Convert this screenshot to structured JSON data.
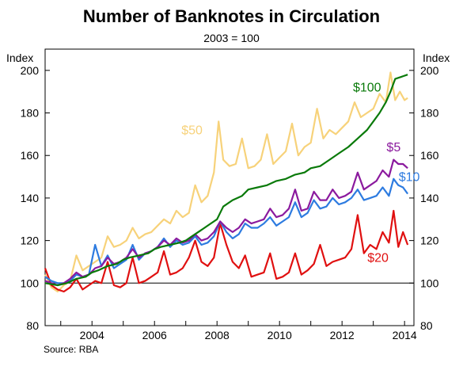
{
  "title": "Number of Banknotes in Circulation",
  "subtitle": "2003 = 100",
  "source": "Source: RBA",
  "chart_data": {
    "type": "line",
    "title": "Number of Banknotes in Circulation",
    "subtitle": "2003 = 100",
    "ylabel_left": "Index",
    "ylabel_right": "Index",
    "ylim": [
      80,
      210
    ],
    "yticks": [
      80,
      100,
      120,
      140,
      160,
      180,
      200
    ],
    "xlim": [
      2002.5,
      2014.3
    ],
    "xticks": [
      2004,
      2006,
      2008,
      2010,
      2012,
      2014
    ],
    "grid": false,
    "reference_line": 100,
    "legend": "inline labels",
    "series": [
      {
        "name": "$100",
        "color": "#0a7a0a",
        "x": [
          2002.5,
          2002.9,
          2003.2,
          2003.5,
          2003.8,
          2004.0,
          2004.2,
          2004.5,
          2004.8,
          2005.0,
          2005.2,
          2005.5,
          2005.8,
          2006.0,
          2006.2,
          2006.5,
          2006.8,
          2007.0,
          2007.2,
          2007.5,
          2007.8,
          2008.0,
          2008.2,
          2008.5,
          2008.8,
          2009.0,
          2009.3,
          2009.6,
          2009.9,
          2010.2,
          2010.5,
          2010.8,
          2011.0,
          2011.3,
          2011.6,
          2011.9,
          2012.2,
          2012.5,
          2012.8,
          2013.0,
          2013.2,
          2013.4,
          2013.55,
          2013.7,
          2013.9,
          2014.1
        ],
        "values": [
          100,
          99,
          100,
          102,
          103,
          105,
          106,
          108,
          109,
          111,
          112,
          113,
          114,
          116,
          117,
          118,
          119,
          120,
          122,
          125,
          128,
          130,
          136,
          139,
          141,
          144,
          145,
          146,
          148,
          149,
          151,
          152,
          154,
          155,
          158,
          161,
          164,
          168,
          172,
          176,
          180,
          185,
          190,
          196,
          197,
          198
        ]
      },
      {
        "name": "$50",
        "color": "#f7d27a",
        "x": [
          2002.5,
          2002.7,
          2002.9,
          2003.1,
          2003.3,
          2003.5,
          2003.7,
          2003.9,
          2004.1,
          2004.3,
          2004.5,
          2004.7,
          2004.9,
          2005.1,
          2005.3,
          2005.5,
          2005.7,
          2005.9,
          2006.1,
          2006.3,
          2006.5,
          2006.7,
          2006.9,
          2007.1,
          2007.3,
          2007.5,
          2007.7,
          2007.9,
          2008.05,
          2008.2,
          2008.4,
          2008.6,
          2008.8,
          2009.0,
          2009.2,
          2009.4,
          2009.6,
          2009.8,
          2010.0,
          2010.2,
          2010.4,
          2010.6,
          2010.8,
          2011.0,
          2011.2,
          2011.4,
          2011.6,
          2011.8,
          2012.0,
          2012.2,
          2012.4,
          2012.6,
          2012.8,
          2013.0,
          2013.2,
          2013.4,
          2013.55,
          2013.7,
          2013.85,
          2014.0,
          2014.1
        ],
        "values": [
          104,
          98,
          96,
          99,
          101,
          113,
          106,
          108,
          110,
          112,
          122,
          117,
          118,
          120,
          126,
          121,
          123,
          124,
          127,
          130,
          128,
          134,
          131,
          133,
          146,
          138,
          141,
          152,
          176,
          158,
          155,
          156,
          168,
          154,
          155,
          158,
          170,
          156,
          159,
          162,
          175,
          160,
          164,
          166,
          182,
          168,
          172,
          170,
          173,
          176,
          185,
          178,
          180,
          182,
          189,
          185,
          199,
          186,
          190,
          186,
          187
        ]
      },
      {
        "name": "$5",
        "color": "#8b1a9e",
        "x": [
          2002.5,
          2002.7,
          2002.9,
          2003.1,
          2003.3,
          2003.5,
          2003.7,
          2003.9,
          2004.1,
          2004.3,
          2004.5,
          2004.7,
          2004.9,
          2005.1,
          2005.3,
          2005.5,
          2005.7,
          2005.9,
          2006.1,
          2006.3,
          2006.5,
          2006.7,
          2006.9,
          2007.1,
          2007.3,
          2007.5,
          2007.7,
          2007.9,
          2008.1,
          2008.3,
          2008.5,
          2008.7,
          2008.9,
          2009.1,
          2009.3,
          2009.5,
          2009.7,
          2009.9,
          2010.1,
          2010.3,
          2010.5,
          2010.7,
          2010.9,
          2011.1,
          2011.3,
          2011.5,
          2011.7,
          2011.9,
          2012.1,
          2012.3,
          2012.5,
          2012.7,
          2012.9,
          2013.1,
          2013.3,
          2013.5,
          2013.65,
          2013.8,
          2013.95,
          2014.1
        ],
        "values": [
          101,
          100,
          99,
          100,
          102,
          105,
          103,
          104,
          107,
          108,
          112,
          109,
          110,
          112,
          116,
          112,
          114,
          115,
          117,
          120,
          118,
          121,
          119,
          120,
          123,
          120,
          121,
          124,
          129,
          126,
          124,
          126,
          130,
          128,
          129,
          130,
          135,
          131,
          132,
          135,
          144,
          134,
          135,
          143,
          139,
          139,
          144,
          140,
          141,
          143,
          152,
          144,
          146,
          148,
          153,
          150,
          158,
          156,
          156,
          154
        ]
      },
      {
        "name": "$10",
        "color": "#2d7be0",
        "x": [
          2002.5,
          2002.7,
          2002.9,
          2003.1,
          2003.3,
          2003.5,
          2003.7,
          2003.9,
          2004.1,
          2004.3,
          2004.5,
          2004.7,
          2004.9,
          2005.1,
          2005.3,
          2005.5,
          2005.7,
          2005.9,
          2006.1,
          2006.3,
          2006.5,
          2006.7,
          2006.9,
          2007.1,
          2007.3,
          2007.5,
          2007.7,
          2007.9,
          2008.1,
          2008.3,
          2008.5,
          2008.7,
          2008.9,
          2009.1,
          2009.3,
          2009.5,
          2009.7,
          2009.9,
          2010.1,
          2010.3,
          2010.5,
          2010.7,
          2010.9,
          2011.1,
          2011.3,
          2011.5,
          2011.7,
          2011.9,
          2012.1,
          2012.3,
          2012.5,
          2012.7,
          2012.9,
          2013.1,
          2013.3,
          2013.5,
          2013.65,
          2013.8,
          2013.95,
          2014.1
        ],
        "values": [
          103,
          101,
          100,
          100,
          101,
          104,
          103,
          104,
          118,
          108,
          113,
          107,
          109,
          111,
          118,
          111,
          114,
          115,
          117,
          121,
          117,
          120,
          118,
          119,
          122,
          118,
          119,
          122,
          129,
          124,
          121,
          123,
          128,
          126,
          126,
          128,
          131,
          127,
          129,
          131,
          138,
          131,
          133,
          139,
          135,
          136,
          140,
          137,
          138,
          140,
          144,
          139,
          140,
          141,
          145,
          141,
          149,
          146,
          145,
          142
        ]
      },
      {
        "name": "$20",
        "color": "#e01010",
        "x": [
          2002.5,
          2002.7,
          2002.9,
          2003.1,
          2003.3,
          2003.5,
          2003.7,
          2003.9,
          2004.1,
          2004.3,
          2004.5,
          2004.7,
          2004.9,
          2005.1,
          2005.3,
          2005.5,
          2005.7,
          2005.9,
          2006.1,
          2006.3,
          2006.5,
          2006.7,
          2006.9,
          2007.1,
          2007.3,
          2007.5,
          2007.7,
          2007.9,
          2008.1,
          2008.3,
          2008.5,
          2008.7,
          2008.9,
          2009.1,
          2009.3,
          2009.5,
          2009.7,
          2009.9,
          2010.1,
          2010.3,
          2010.5,
          2010.7,
          2010.9,
          2011.1,
          2011.3,
          2011.5,
          2011.7,
          2011.9,
          2012.1,
          2012.3,
          2012.5,
          2012.7,
          2012.9,
          2013.1,
          2013.3,
          2013.5,
          2013.65,
          2013.8,
          2013.95,
          2014.1
        ],
        "values": [
          107,
          99,
          97,
          96,
          98,
          102,
          97,
          99,
          101,
          100,
          110,
          99,
          98,
          100,
          112,
          100,
          101,
          103,
          105,
          115,
          104,
          105,
          107,
          112,
          120,
          110,
          108,
          112,
          128,
          118,
          110,
          107,
          113,
          103,
          104,
          105,
          114,
          102,
          103,
          105,
          114,
          104,
          106,
          109,
          118,
          108,
          110,
          111,
          112,
          116,
          132,
          114,
          118,
          116,
          124,
          119,
          134,
          117,
          124,
          118
        ]
      }
    ],
    "series_label_colors": {
      "$100": "#0a7a0a",
      "$50": "#f7d27a",
      "$5": "#8b1a9e",
      "$10": "#2d7be0",
      "$20": "#e01010"
    }
  }
}
